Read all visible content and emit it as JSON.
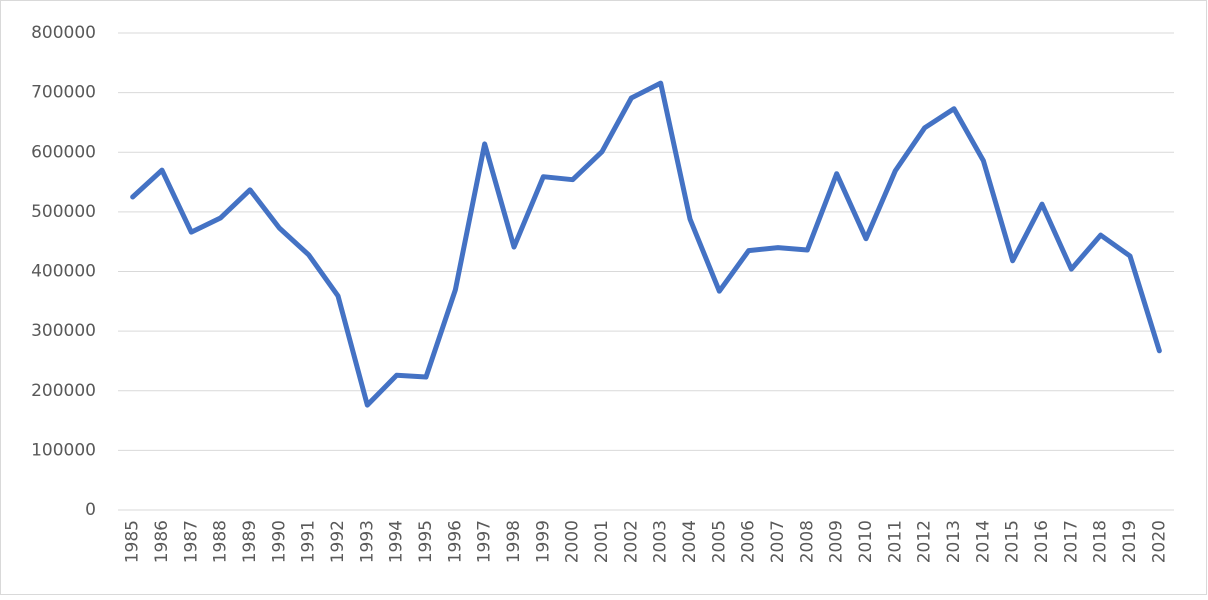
{
  "chart_data": {
    "type": "line",
    "categories": [
      "1985",
      "1986",
      "1987",
      "1988",
      "1989",
      "1990",
      "1991",
      "1992",
      "1993",
      "1994",
      "1995",
      "1996",
      "1997",
      "1998",
      "1999",
      "2000",
      "2001",
      "2002",
      "2003",
      "2004",
      "2005",
      "2006",
      "2007",
      "2008",
      "2009",
      "2010",
      "2011",
      "2012",
      "2013",
      "2014",
      "2015",
      "2016",
      "2017",
      "2018",
      "2019",
      "2020"
    ],
    "series": [
      {
        "color": "#4472c4",
        "values": [
          525000,
          570000,
          466000,
          490000,
          537000,
          473000,
          428000,
          359000,
          176000,
          226000,
          223000,
          369000,
          614000,
          441000,
          559000,
          554000,
          601000,
          691000,
          716000,
          488000,
          367000,
          435000,
          440000,
          436000,
          564000,
          455000,
          569000,
          641000,
          673000,
          586000,
          418000,
          513000,
          404000,
          461000,
          426000,
          267000
        ]
      }
    ],
    "ylim": [
      0,
      800000
    ],
    "yticks": [
      0,
      100000,
      200000,
      300000,
      400000,
      500000,
      600000,
      700000,
      800000
    ],
    "grid": true
  }
}
